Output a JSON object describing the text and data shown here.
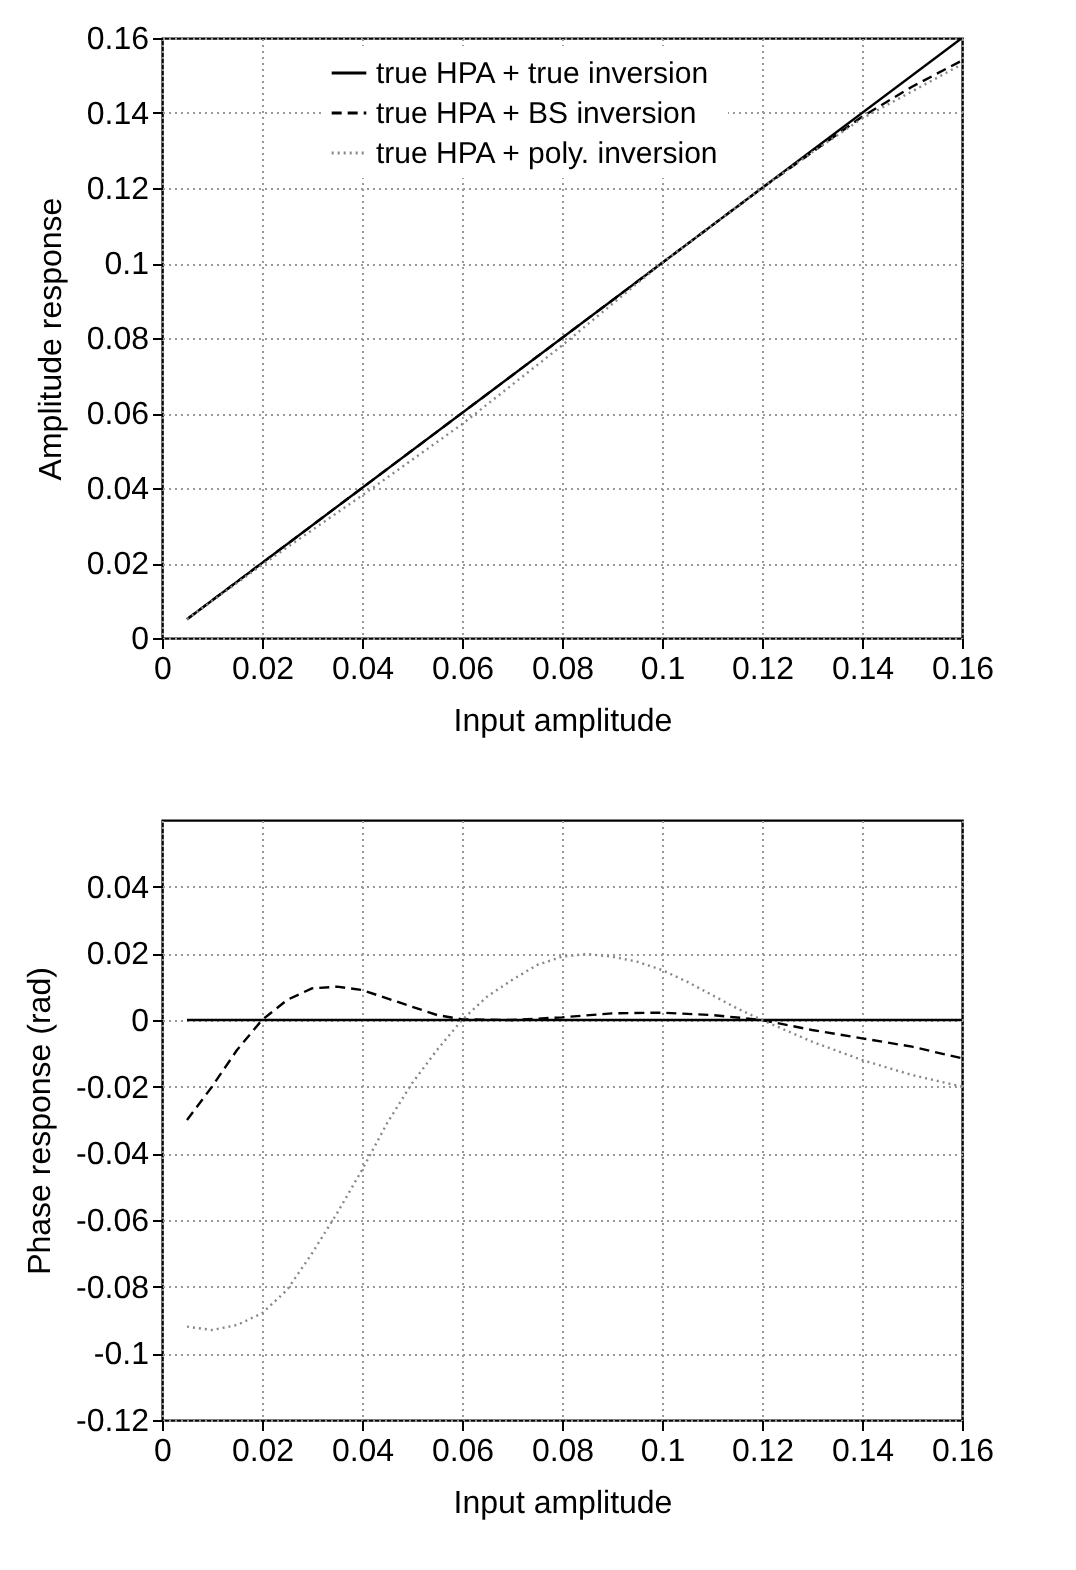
{
  "chart_data": [
    {
      "type": "line",
      "xlabel": "Input amplitude",
      "ylabel": "Amplitude response",
      "xlim": [
        0,
        0.16
      ],
      "ylim": [
        0,
        0.16
      ],
      "xticks": [
        0,
        0.02,
        0.04,
        0.06,
        0.08,
        0.1,
        0.12,
        0.14,
        0.16
      ],
      "yticks": [
        0,
        0.02,
        0.04,
        0.06,
        0.08,
        0.1,
        0.12,
        0.14,
        0.16
      ],
      "grid": true,
      "legend": "top right",
      "series": [
        {
          "name": "true HPA + true inversion",
          "color": "#000000",
          "line_style": "solid",
          "x": [
            0.005,
            0.16
          ],
          "values": [
            0.005,
            0.16
          ]
        },
        {
          "name": "true HPA + BS inversion",
          "color": "#000000",
          "line_style": "dashed",
          "x": [
            0.005,
            0.04,
            0.08,
            0.1,
            0.12,
            0.13,
            0.14,
            0.15,
            0.16
          ],
          "values": [
            0.005,
            0.04,
            0.08,
            0.1,
            0.12,
            0.1295,
            0.139,
            0.147,
            0.154
          ]
        },
        {
          "name": "true HPA + poly. inversion",
          "color": "#888888",
          "line_style": "dotted",
          "x": [
            0.005,
            0.02,
            0.04,
            0.06,
            0.08,
            0.1,
            0.12,
            0.13,
            0.14,
            0.16
          ],
          "values": [
            0.005,
            0.0195,
            0.038,
            0.057,
            0.078,
            0.1,
            0.12,
            0.1295,
            0.1385,
            0.153
          ]
        }
      ]
    },
    {
      "type": "line",
      "xlabel": "Input amplitude",
      "ylabel": "Phase response (rad)",
      "xlim": [
        0,
        0.16
      ],
      "ylim": [
        -0.12,
        0.06
      ],
      "xticks": [
        0,
        0.02,
        0.04,
        0.06,
        0.08,
        0.1,
        0.12,
        0.14,
        0.16
      ],
      "yticks": [
        -0.12,
        -0.1,
        -0.08,
        -0.06,
        -0.04,
        -0.02,
        0,
        0.02,
        0.04
      ],
      "grid": true,
      "legend": "top right",
      "series": [
        {
          "name": "true HPA + true inversion",
          "color": "#000000",
          "line_style": "solid",
          "x": [
            0.005,
            0.16
          ],
          "values": [
            0,
            0
          ]
        },
        {
          "name": "true HPA + BS inversion",
          "color": "#000000",
          "line_style": "dashed",
          "x": [
            0.005,
            0.01,
            0.015,
            0.02,
            0.025,
            0.03,
            0.035,
            0.04,
            0.045,
            0.05,
            0.055,
            0.06,
            0.07,
            0.08,
            0.09,
            0.1,
            0.11,
            0.12,
            0.13,
            0.14,
            0.15,
            0.16
          ],
          "values": [
            -0.03,
            -0.02,
            -0.009,
            0,
            0.006,
            0.0095,
            0.01,
            0.009,
            0.0065,
            0.004,
            0.0015,
            0.0002,
            0,
            0.0008,
            0.002,
            0.0022,
            0.0015,
            0,
            -0.003,
            -0.0055,
            -0.008,
            -0.0115
          ]
        },
        {
          "name": "true HPA + poly. inversion",
          "color": "#888888",
          "line_style": "dotted",
          "x": [
            0.005,
            0.01,
            0.015,
            0.02,
            0.025,
            0.03,
            0.035,
            0.04,
            0.045,
            0.05,
            0.055,
            0.06,
            0.065,
            0.07,
            0.075,
            0.08,
            0.085,
            0.09,
            0.095,
            0.1,
            0.105,
            0.11,
            0.115,
            0.12,
            0.13,
            0.14,
            0.15,
            0.16
          ],
          "values": [
            -0.092,
            -0.093,
            -0.0915,
            -0.088,
            -0.081,
            -0.07,
            -0.058,
            -0.045,
            -0.031,
            -0.019,
            -0.009,
            0,
            0.007,
            0.012,
            0.0165,
            0.019,
            0.0198,
            0.019,
            0.0175,
            0.015,
            0.0115,
            0.0075,
            0.0035,
            0,
            -0.0065,
            -0.012,
            -0.0165,
            -0.02
          ]
        }
      ]
    }
  ]
}
